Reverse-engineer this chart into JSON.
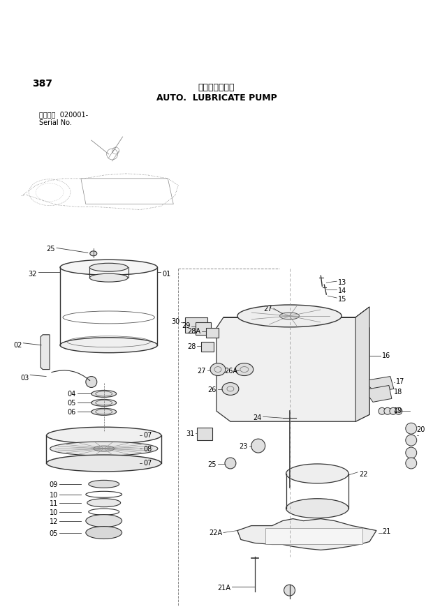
{
  "title_japanese": "自動給脂ボンプ",
  "title_english": "AUTO.  LUBRICATE PUMP",
  "page_number": "387",
  "serial_label": "適用号機  020001-",
  "serial_no": "Serial No.",
  "bg_color": "#ffffff",
  "tc": "#000000",
  "lc": "#333333",
  "figsize": [
    6.2,
    8.73
  ],
  "dpi": 100
}
